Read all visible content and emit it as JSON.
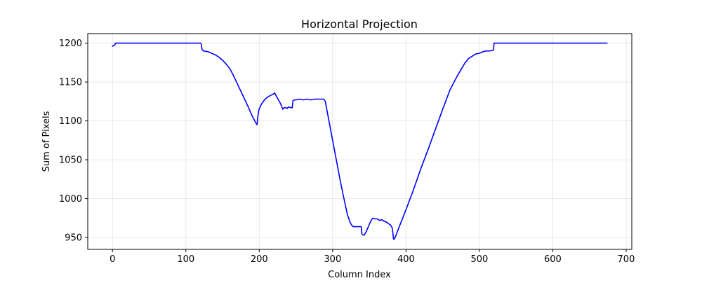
{
  "chart_data": {
    "type": "line",
    "title": "Horizontal Projection",
    "xlabel": "Column Index",
    "ylabel": "Sum of Pixels",
    "xlim": [
      -33.7,
      707.7
    ],
    "ylim": [
      934.8,
      1212.2
    ],
    "x_ticks": [
      0,
      100,
      200,
      300,
      400,
      500,
      600,
      700
    ],
    "y_ticks": [
      950,
      1000,
      1050,
      1100,
      1150,
      1200
    ],
    "grid": true,
    "legend": "none",
    "series": [
      {
        "color": "#0000ff",
        "points": [
          [
            0,
            1196
          ],
          [
            2,
            1197
          ],
          [
            3,
            1197
          ],
          [
            4,
            1200
          ],
          [
            10,
            1200
          ],
          [
            50,
            1200
          ],
          [
            100,
            1200
          ],
          [
            120,
            1200
          ],
          [
            121,
            1199
          ],
          [
            122,
            1192
          ],
          [
            124,
            1190
          ],
          [
            130,
            1189
          ],
          [
            135,
            1187
          ],
          [
            140,
            1185
          ],
          [
            145,
            1182
          ],
          [
            150,
            1178
          ],
          [
            155,
            1173
          ],
          [
            160,
            1167
          ],
          [
            165,
            1158
          ],
          [
            170,
            1148
          ],
          [
            175,
            1138
          ],
          [
            180,
            1128
          ],
          [
            185,
            1118
          ],
          [
            190,
            1107
          ],
          [
            195,
            1098
          ],
          [
            197,
            1095
          ],
          [
            198,
            1105
          ],
          [
            199,
            1112
          ],
          [
            201,
            1118
          ],
          [
            204,
            1123
          ],
          [
            208,
            1128
          ],
          [
            212,
            1131
          ],
          [
            216,
            1133
          ],
          [
            220,
            1135
          ],
          [
            221,
            1136
          ],
          [
            222,
            1134
          ],
          [
            225,
            1129
          ],
          [
            228,
            1124
          ],
          [
            230,
            1120
          ],
          [
            232,
            1115
          ],
          [
            234,
            1117
          ],
          [
            236,
            1117
          ],
          [
            238,
            1116
          ],
          [
            240,
            1118
          ],
          [
            243,
            1117
          ],
          [
            245,
            1117
          ],
          [
            246,
            1126
          ],
          [
            248,
            1127
          ],
          [
            250,
            1127
          ],
          [
            255,
            1128
          ],
          [
            260,
            1127
          ],
          [
            265,
            1128
          ],
          [
            270,
            1127
          ],
          [
            275,
            1128
          ],
          [
            280,
            1128
          ],
          [
            285,
            1128
          ],
          [
            288,
            1128
          ],
          [
            290,
            1125
          ],
          [
            292,
            1115
          ],
          [
            295,
            1100
          ],
          [
            300,
            1075
          ],
          [
            305,
            1050
          ],
          [
            310,
            1025
          ],
          [
            315,
            1002
          ],
          [
            320,
            980
          ],
          [
            324,
            969
          ],
          [
            326,
            966
          ],
          [
            328,
            964
          ],
          [
            332,
            964
          ],
          [
            336,
            964
          ],
          [
            339,
            964
          ],
          [
            340,
            954
          ],
          [
            343,
            953
          ],
          [
            346,
            958
          ],
          [
            350,
            967
          ],
          [
            353,
            973
          ],
          [
            355,
            975
          ],
          [
            358,
            974
          ],
          [
            361,
            974
          ],
          [
            364,
            972
          ],
          [
            367,
            973
          ],
          [
            370,
            971
          ],
          [
            373,
            970
          ],
          [
            376,
            968
          ],
          [
            379,
            966
          ],
          [
            381,
            963
          ],
          [
            382,
            957
          ],
          [
            383,
            948
          ],
          [
            384,
            948
          ],
          [
            386,
            952
          ],
          [
            390,
            962
          ],
          [
            400,
            986
          ],
          [
            410,
            1011
          ],
          [
            420,
            1038
          ],
          [
            430,
            1063
          ],
          [
            440,
            1089
          ],
          [
            450,
            1115
          ],
          [
            460,
            1140
          ],
          [
            470,
            1158
          ],
          [
            480,
            1174
          ],
          [
            485,
            1180
          ],
          [
            490,
            1183
          ],
          [
            495,
            1186
          ],
          [
            500,
            1187
          ],
          [
            505,
            1189
          ],
          [
            510,
            1190
          ],
          [
            515,
            1190
          ],
          [
            519,
            1191
          ],
          [
            520,
            1200
          ],
          [
            530,
            1200
          ],
          [
            600,
            1200
          ],
          [
            674,
            1200
          ]
        ]
      }
    ]
  }
}
